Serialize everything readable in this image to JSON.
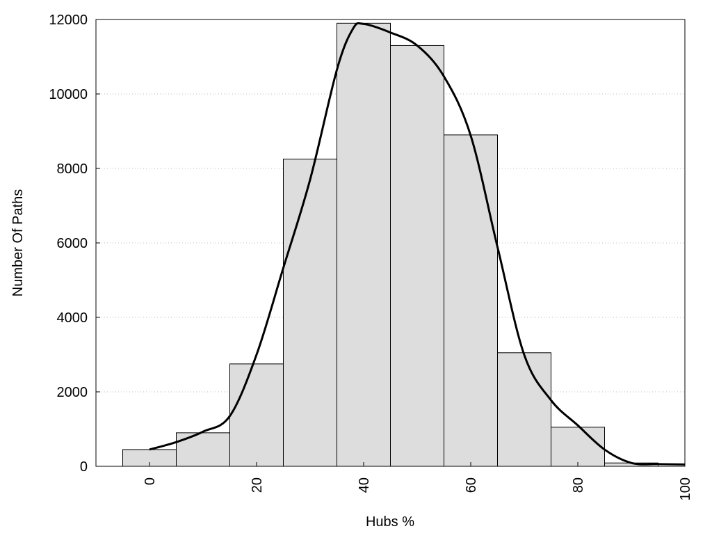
{
  "chart_data": {
    "type": "bar",
    "title": "",
    "xlabel": "Hubs %",
    "ylabel": "Number Of Paths",
    "xlim": [
      -10,
      100
    ],
    "ylim": [
      0,
      12000
    ],
    "grid": "horizontal dotted",
    "x_ticks": [
      0,
      20,
      40,
      60,
      80,
      100
    ],
    "y_ticks": [
      0,
      2000,
      4000,
      6000,
      8000,
      10000,
      12000
    ],
    "bar_width": 10,
    "categories": [
      0,
      10,
      20,
      30,
      40,
      50,
      60,
      70,
      80,
      90
    ],
    "values": [
      450,
      900,
      2750,
      8250,
      11900,
      11300,
      8900,
      3050,
      1050,
      90
    ],
    "bar_color": "#dddddd",
    "curve": {
      "x": [
        0,
        5,
        10,
        15,
        20,
        25,
        30,
        35,
        38,
        40,
        45,
        50,
        55,
        60,
        65,
        70,
        75,
        80,
        85,
        90,
        95,
        100
      ],
      "y": [
        450,
        650,
        930,
        1350,
        3000,
        5330,
        7700,
        10650,
        11750,
        11880,
        11650,
        11300,
        10470,
        8880,
        5890,
        2990,
        1775,
        1100,
        450,
        90,
        60,
        50
      ],
      "color": "#000000"
    }
  }
}
